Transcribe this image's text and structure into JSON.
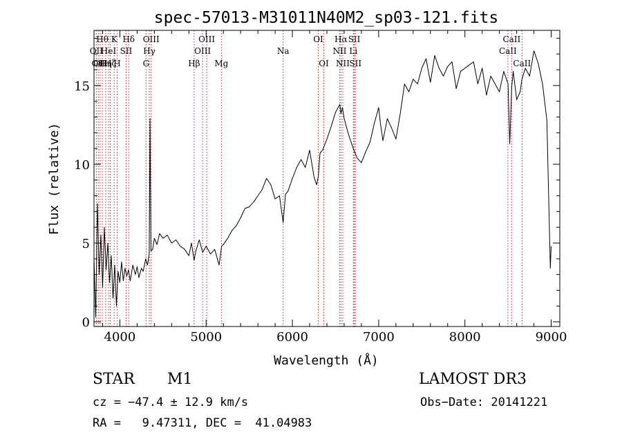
{
  "chart_data": {
    "type": "line",
    "title": "spec-57013-M31011N40M2_sp03-121.fits",
    "xlabel": "Wavelength (Å)",
    "ylabel": "Flux (relative)",
    "xlim": [
      3700,
      9100
    ],
    "ylim": [
      -0.3,
      18.5
    ],
    "x_ticks": [
      4000,
      5000,
      6000,
      7000,
      8000,
      9000
    ],
    "y_ticks": [
      0,
      5,
      10,
      15
    ],
    "grid": false,
    "series": [
      {
        "x": [
          3700,
          3720,
          3740,
          3760,
          3780,
          3800,
          3820,
          3840,
          3860,
          3880,
          3900,
          3920,
          3940,
          3960,
          3980,
          4000,
          4020,
          4040,
          4060,
          4080,
          4100,
          4120,
          4150,
          4180,
          4200,
          4220,
          4250,
          4270,
          4300,
          4320,
          4340,
          4350,
          4360,
          4380,
          4400,
          4430,
          4460,
          4500,
          4550,
          4600,
          4650,
          4700,
          4750,
          4800,
          4830,
          4861,
          4880,
          4920,
          4960,
          5000,
          5050,
          5100,
          5150,
          5180,
          5200,
          5250,
          5300,
          5350,
          5400,
          5450,
          5500,
          5550,
          5600,
          5650,
          5700,
          5750,
          5800,
          5850,
          5893,
          5920,
          5950,
          6000,
          6050,
          6100,
          6150,
          6200,
          6250,
          6280,
          6300,
          6320,
          6350,
          6400,
          6450,
          6500,
          6550,
          6563,
          6580,
          6600,
          6650,
          6700,
          6750,
          6800,
          6850,
          6900,
          6950,
          7000,
          7020,
          7050,
          7100,
          7150,
          7200,
          7250,
          7300,
          7350,
          7400,
          7450,
          7500,
          7550,
          7600,
          7650,
          7700,
          7750,
          7800,
          7850,
          7900,
          7950,
          8000,
          8050,
          8100,
          8150,
          8200,
          8250,
          8300,
          8350,
          8400,
          8450,
          8500,
          8520,
          8542,
          8560,
          8600,
          8640,
          8662,
          8700,
          8750,
          8800,
          8850,
          8900,
          8950,
          8990,
          9000
        ],
        "y": [
          4.0,
          0.3,
          7.5,
          3.0,
          5.5,
          2.2,
          6.0,
          3.3,
          5.0,
          2.5,
          4.2,
          1.5,
          3.6,
          1.0,
          3.2,
          2.5,
          3.8,
          2.6,
          3.4,
          2.9,
          3.3,
          2.6,
          3.6,
          3.0,
          3.5,
          2.8,
          3.4,
          3.2,
          4.0,
          3.6,
          4.3,
          12.9,
          4.5,
          4.6,
          5.3,
          4.9,
          5.6,
          5.3,
          5.5,
          5.0,
          5.2,
          4.8,
          4.6,
          4.2,
          5.0,
          3.9,
          4.5,
          5.2,
          4.4,
          4.8,
          4.3,
          4.6,
          3.6,
          4.8,
          4.9,
          5.3,
          5.8,
          6.1,
          6.6,
          7.2,
          7.3,
          7.6,
          8.0,
          8.4,
          9.1,
          8.7,
          7.8,
          8.0,
          6.3,
          8.1,
          8.3,
          9.1,
          9.8,
          10.3,
          9.8,
          10.9,
          9.2,
          8.7,
          9.2,
          10.7,
          10.9,
          11.6,
          12.4,
          13.3,
          13.8,
          13.2,
          13.6,
          12.9,
          11.9,
          11.1,
          10.4,
          10.1,
          10.8,
          11.4,
          12.6,
          13.6,
          12.6,
          11.5,
          12.9,
          12.3,
          11.6,
          13.2,
          15.1,
          14.6,
          15.4,
          15.1,
          16.1,
          16.7,
          15.2,
          16.9,
          16.1,
          15.6,
          16.2,
          16.5,
          14.8,
          15.9,
          16.1,
          16.3,
          16.5,
          15.1,
          16.1,
          14.4,
          15.6,
          15.1,
          14.6,
          15.9,
          15.1,
          11.3,
          14.9,
          15.9,
          14.1,
          14.6,
          15.4,
          16.1,
          15.6,
          17.2,
          16.4,
          15.1,
          12.8,
          3.4,
          4.8
        ]
      }
    ],
    "line_marks": [
      {
        "x": 3727,
        "label": "OII",
        "row": 2
      },
      {
        "x": 3750,
        "label": "OII",
        "row": 3
      },
      {
        "x": 3771,
        "label": "OII",
        "row": 3
      },
      {
        "x": 3797,
        "label": "Hθ",
        "row": 1
      },
      {
        "x": 3835,
        "label": "Hη",
        "row": 3
      },
      {
        "x": 3869,
        "label": "HeI",
        "row": 2
      },
      {
        "x": 3889,
        "label": "Hζ",
        "row": 3
      },
      {
        "x": 3934,
        "label": "K",
        "row": 1
      },
      {
        "x": 3968,
        "label": "H",
        "row": 3
      },
      {
        "x": 4072,
        "label": "SII",
        "row": 2
      },
      {
        "x": 4102,
        "label": "Hδ",
        "row": 1
      },
      {
        "x": 4304,
        "label": "G",
        "row": 3
      },
      {
        "x": 4341,
        "label": "Hγ",
        "row": 2
      },
      {
        "x": 4363,
        "label": "OIII",
        "row": 1
      },
      {
        "x": 4861,
        "label": "Hβ",
        "row": 3
      },
      {
        "x": 4959,
        "label": "OIII",
        "row": 2
      },
      {
        "x": 5007,
        "label": "OIII",
        "row": 1
      },
      {
        "x": 5177,
        "label": "Mg",
        "row": 3
      },
      {
        "x": 5893,
        "label": "Na",
        "row": 2
      },
      {
        "x": 6300,
        "label": "OI",
        "row": 1
      },
      {
        "x": 6364,
        "label": "OI",
        "row": 3
      },
      {
        "x": 6548,
        "label": "NII",
        "row": 2
      },
      {
        "x": 6563,
        "label": "Hα",
        "row": 1
      },
      {
        "x": 6584,
        "label": "NII",
        "row": 3
      },
      {
        "x": 6707,
        "label": "Li",
        "row": 2
      },
      {
        "x": 6717,
        "label": "SII",
        "row": 1
      },
      {
        "x": 6731,
        "label": "SII",
        "row": 3
      },
      {
        "x": 8498,
        "label": "CaII",
        "row": 2
      },
      {
        "x": 8542,
        "label": "CaII",
        "row": 1
      },
      {
        "x": 8662,
        "label": "CaII",
        "row": 3
      }
    ],
    "line_mark_color": "#b22222"
  },
  "info": {
    "object_class": "STAR",
    "subclass": "M1",
    "survey": "LAMOST DR3",
    "cz": "cz = −47.4 ± 12.9 km/s",
    "obs_date": "Obs−Date: 20141221",
    "coords": "RA =   9.47311, DEC =  41.04983"
  }
}
